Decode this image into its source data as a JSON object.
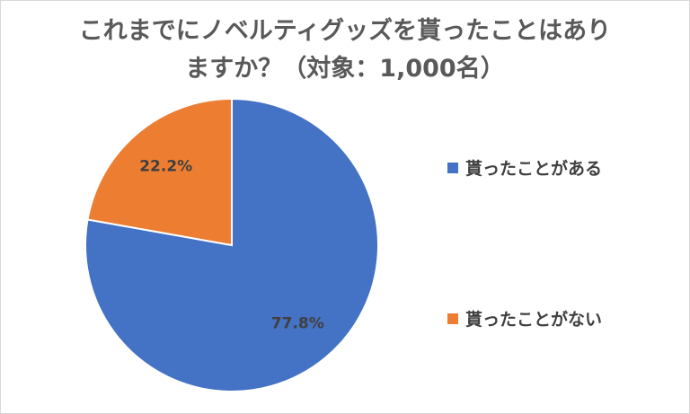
{
  "chart_data": {
    "type": "pie",
    "title_line1": "これまでにノベルティグッズを貰ったことはあり",
    "title_line2": "ますか？（対象：1,000名）",
    "slices": [
      {
        "label": "貰ったことがある",
        "value": 77.8,
        "data_label": "77.8%",
        "color": "#4472C4"
      },
      {
        "label": "貰ったことがない",
        "value": 22.2,
        "data_label": "22.2%",
        "color": "#ED7D31"
      }
    ],
    "legend_position": "right"
  }
}
